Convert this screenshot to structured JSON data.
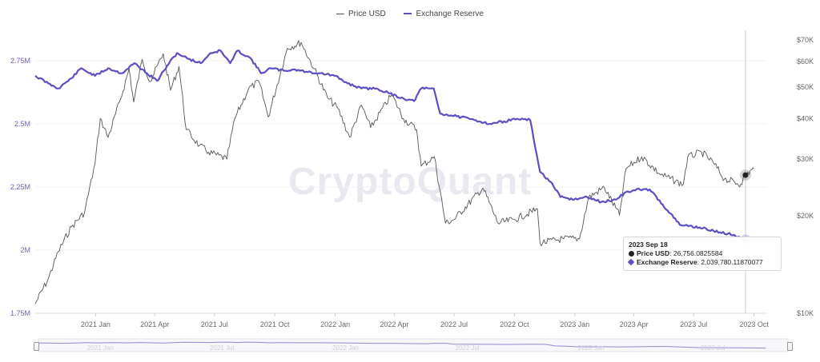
{
  "legend": [
    {
      "label": "Price USD",
      "color": "#555555"
    },
    {
      "label": "Exchange Reserve",
      "color": "#5a4fc4"
    }
  ],
  "watermark": "CryptoQuant",
  "tooltip": {
    "date": "2023 Sep 18",
    "price_label": "Price USD",
    "price_value": "26,756.0825584",
    "reserve_label": "Exchange Reserve",
    "reserve_value": "2,039,780.11870077"
  },
  "navigator_labels": [
    "2021 Jan",
    "2021 Jul",
    "2022 Jan",
    "2022 Jul",
    "2023 Jan",
    "2023 Jul"
  ],
  "chart_data": {
    "type": "line",
    "x_tick_labels": [
      "2021 Jan",
      "2021 Apr",
      "2021 Jul",
      "2021 Oct",
      "2022 Jan",
      "2022 Apr",
      "2022 Jul",
      "2022 Oct",
      "2023 Jan",
      "2023 Apr",
      "2023 Jul",
      "2023 Oct"
    ],
    "left_axis": {
      "label": "Exchange Reserve",
      "ticks": [
        "1.75M",
        "2M",
        "2.25M",
        "2.5M",
        "2.75M"
      ],
      "ylim": [
        1750000,
        2870000
      ]
    },
    "right_axis": {
      "label": "Price USD",
      "scale": "log",
      "ticks": [
        "$10K",
        "$20K",
        "$30K",
        "$40K",
        "$50K",
        "$60K",
        "$70K"
      ],
      "ylim": [
        10000,
        75000
      ]
    },
    "series": [
      {
        "name": "Price USD",
        "axis": "right",
        "color": "#555555",
        "points": [
          [
            "2020-10-01",
            10700
          ],
          [
            "2020-10-21",
            12800
          ],
          [
            "2020-11-05",
            15500
          ],
          [
            "2020-11-25",
            18500
          ],
          [
            "2020-12-15",
            20500
          ],
          [
            "2020-12-31",
            29000
          ],
          [
            "2021-01-08",
            40000
          ],
          [
            "2021-01-20",
            35000
          ],
          [
            "2021-02-08",
            46000
          ],
          [
            "2021-02-21",
            57000
          ],
          [
            "2021-02-28",
            45000
          ],
          [
            "2021-03-13",
            61000
          ],
          [
            "2021-03-25",
            52000
          ],
          [
            "2021-04-14",
            63500
          ],
          [
            "2021-04-25",
            49000
          ],
          [
            "2021-05-08",
            58000
          ],
          [
            "2021-05-19",
            37000
          ],
          [
            "2021-06-08",
            33000
          ],
          [
            "2021-06-22",
            31500
          ],
          [
            "2021-07-20",
            30000
          ],
          [
            "2021-08-01",
            40000
          ],
          [
            "2021-08-22",
            49500
          ],
          [
            "2021-09-07",
            52000
          ],
          [
            "2021-09-21",
            40500
          ],
          [
            "2021-10-20",
            66000
          ],
          [
            "2021-11-10",
            68800
          ],
          [
            "2021-11-30",
            57000
          ],
          [
            "2021-12-20",
            46500
          ],
          [
            "2022-01-05",
            43000
          ],
          [
            "2022-01-23",
            35000
          ],
          [
            "2022-02-10",
            44000
          ],
          [
            "2022-02-24",
            37500
          ],
          [
            "2022-03-28",
            47500
          ],
          [
            "2022-04-15",
            40000
          ],
          [
            "2022-05-05",
            37000
          ],
          [
            "2022-05-12",
            28500
          ],
          [
            "2022-06-01",
            30500
          ],
          [
            "2022-06-18",
            19000
          ],
          [
            "2022-07-01",
            19500
          ],
          [
            "2022-08-14",
            24400
          ],
          [
            "2022-09-06",
            19000
          ],
          [
            "2022-10-01",
            19500
          ],
          [
            "2022-11-05",
            21000
          ],
          [
            "2022-11-09",
            16500
          ],
          [
            "2022-12-15",
            17000
          ],
          [
            "2023-01-08",
            17000
          ],
          [
            "2023-01-22",
            22800
          ],
          [
            "2023-02-15",
            24500
          ],
          [
            "2023-03-10",
            20100
          ],
          [
            "2023-03-20",
            28000
          ],
          [
            "2023-04-13",
            30500
          ],
          [
            "2023-05-10",
            27000
          ],
          [
            "2023-06-15",
            25000
          ],
          [
            "2023-06-22",
            30400
          ],
          [
            "2023-07-13",
            31500
          ],
          [
            "2023-07-31",
            29200
          ],
          [
            "2023-08-17",
            26000
          ],
          [
            "2023-09-11",
            25100
          ],
          [
            "2023-09-18",
            26756
          ],
          [
            "2023-10-01",
            28000
          ]
        ]
      },
      {
        "name": "Exchange Reserve",
        "axis": "left",
        "color": "#5a4fc4",
        "points": [
          [
            "2020-10-01",
            2690000
          ],
          [
            "2020-10-21",
            2660000
          ],
          [
            "2020-11-05",
            2640000
          ],
          [
            "2020-11-25",
            2680000
          ],
          [
            "2020-12-10",
            2720000
          ],
          [
            "2020-12-31",
            2690000
          ],
          [
            "2021-01-20",
            2720000
          ],
          [
            "2021-02-10",
            2700000
          ],
          [
            "2021-03-01",
            2740000
          ],
          [
            "2021-03-20",
            2700000
          ],
          [
            "2021-04-05",
            2670000
          ],
          [
            "2021-04-20",
            2730000
          ],
          [
            "2021-05-05",
            2780000
          ],
          [
            "2021-05-20",
            2760000
          ],
          [
            "2021-06-10",
            2740000
          ],
          [
            "2021-06-25",
            2780000
          ],
          [
            "2021-07-10",
            2790000
          ],
          [
            "2021-07-25",
            2740000
          ],
          [
            "2021-08-05",
            2790000
          ],
          [
            "2021-08-25",
            2760000
          ],
          [
            "2021-09-10",
            2700000
          ],
          [
            "2021-09-25",
            2720000
          ],
          [
            "2021-10-15",
            2710000
          ],
          [
            "2021-11-01",
            2715000
          ],
          [
            "2021-11-20",
            2705000
          ],
          [
            "2021-12-10",
            2700000
          ],
          [
            "2021-12-31",
            2690000
          ],
          [
            "2022-01-20",
            2660000
          ],
          [
            "2022-02-10",
            2640000
          ],
          [
            "2022-03-05",
            2640000
          ],
          [
            "2022-03-25",
            2620000
          ],
          [
            "2022-04-15",
            2600000
          ],
          [
            "2022-05-01",
            2590000
          ],
          [
            "2022-05-12",
            2640000
          ],
          [
            "2022-05-31",
            2640000
          ],
          [
            "2022-06-10",
            2540000
          ],
          [
            "2022-07-05",
            2530000
          ],
          [
            "2022-08-01",
            2515000
          ],
          [
            "2022-08-25",
            2500000
          ],
          [
            "2022-09-15",
            2510000
          ],
          [
            "2022-10-05",
            2520000
          ],
          [
            "2022-10-25",
            2515000
          ],
          [
            "2022-11-09",
            2310000
          ],
          [
            "2022-11-25",
            2270000
          ],
          [
            "2022-12-10",
            2210000
          ],
          [
            "2022-12-31",
            2200000
          ],
          [
            "2023-01-20",
            2210000
          ],
          [
            "2023-02-10",
            2190000
          ],
          [
            "2023-03-05",
            2200000
          ],
          [
            "2023-03-20",
            2230000
          ],
          [
            "2023-04-10",
            2240000
          ],
          [
            "2023-04-25",
            2240000
          ],
          [
            "2023-05-15",
            2180000
          ],
          [
            "2023-06-10",
            2100000
          ],
          [
            "2023-07-10",
            2090000
          ],
          [
            "2023-08-10",
            2070000
          ],
          [
            "2023-09-01",
            2060000
          ],
          [
            "2023-09-18",
            2039780
          ]
        ]
      }
    ],
    "highlight_date": "2023-09-18"
  }
}
